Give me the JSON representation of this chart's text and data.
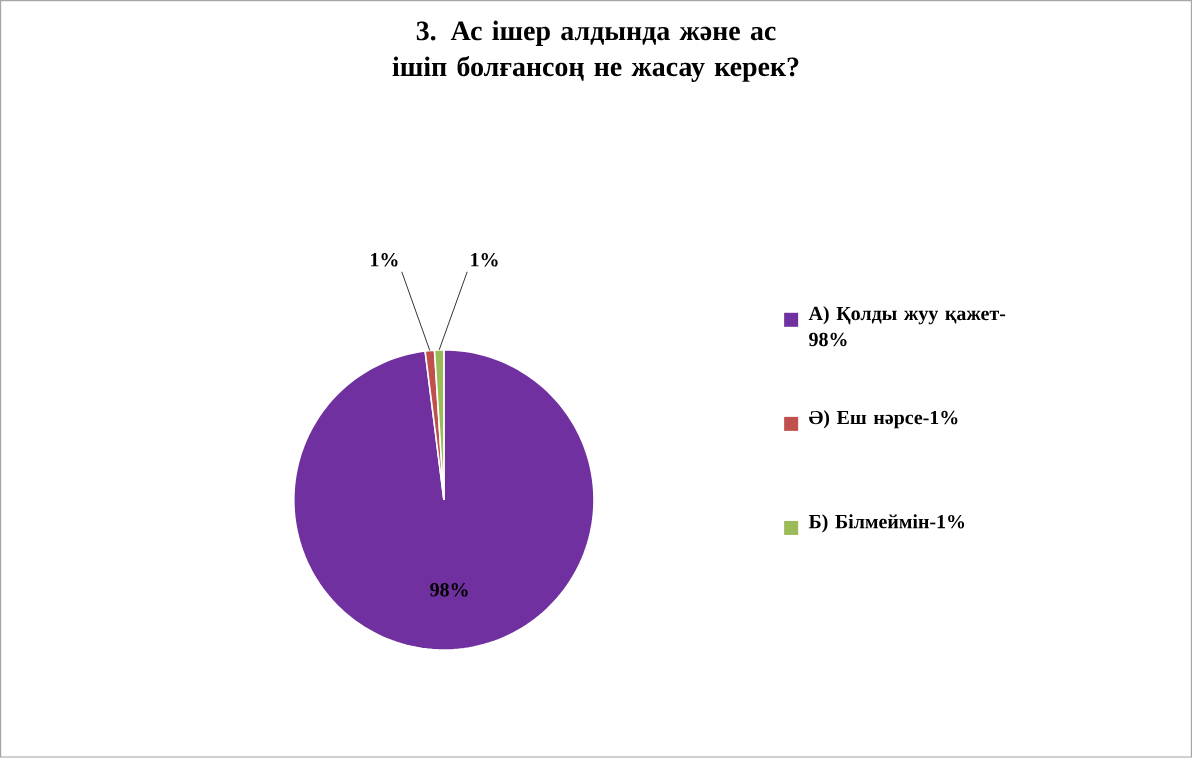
{
  "chart_data": {
    "type": "pie",
    "title": "3. Ас ішер алдында және ас ішіп болғансоң не жасау керек?",
    "categories": [
      "А) Қолды жуу қажет-98%",
      "Ә) Еш нәрсе-1%",
      "Б) Білмеймін-1%"
    ],
    "values": [
      98,
      1,
      1
    ],
    "colors": [
      "#7030a0",
      "#c0504d",
      "#9bbb59"
    ],
    "value_labels": [
      "98%",
      "1%",
      "1%"
    ],
    "legend": "right"
  }
}
